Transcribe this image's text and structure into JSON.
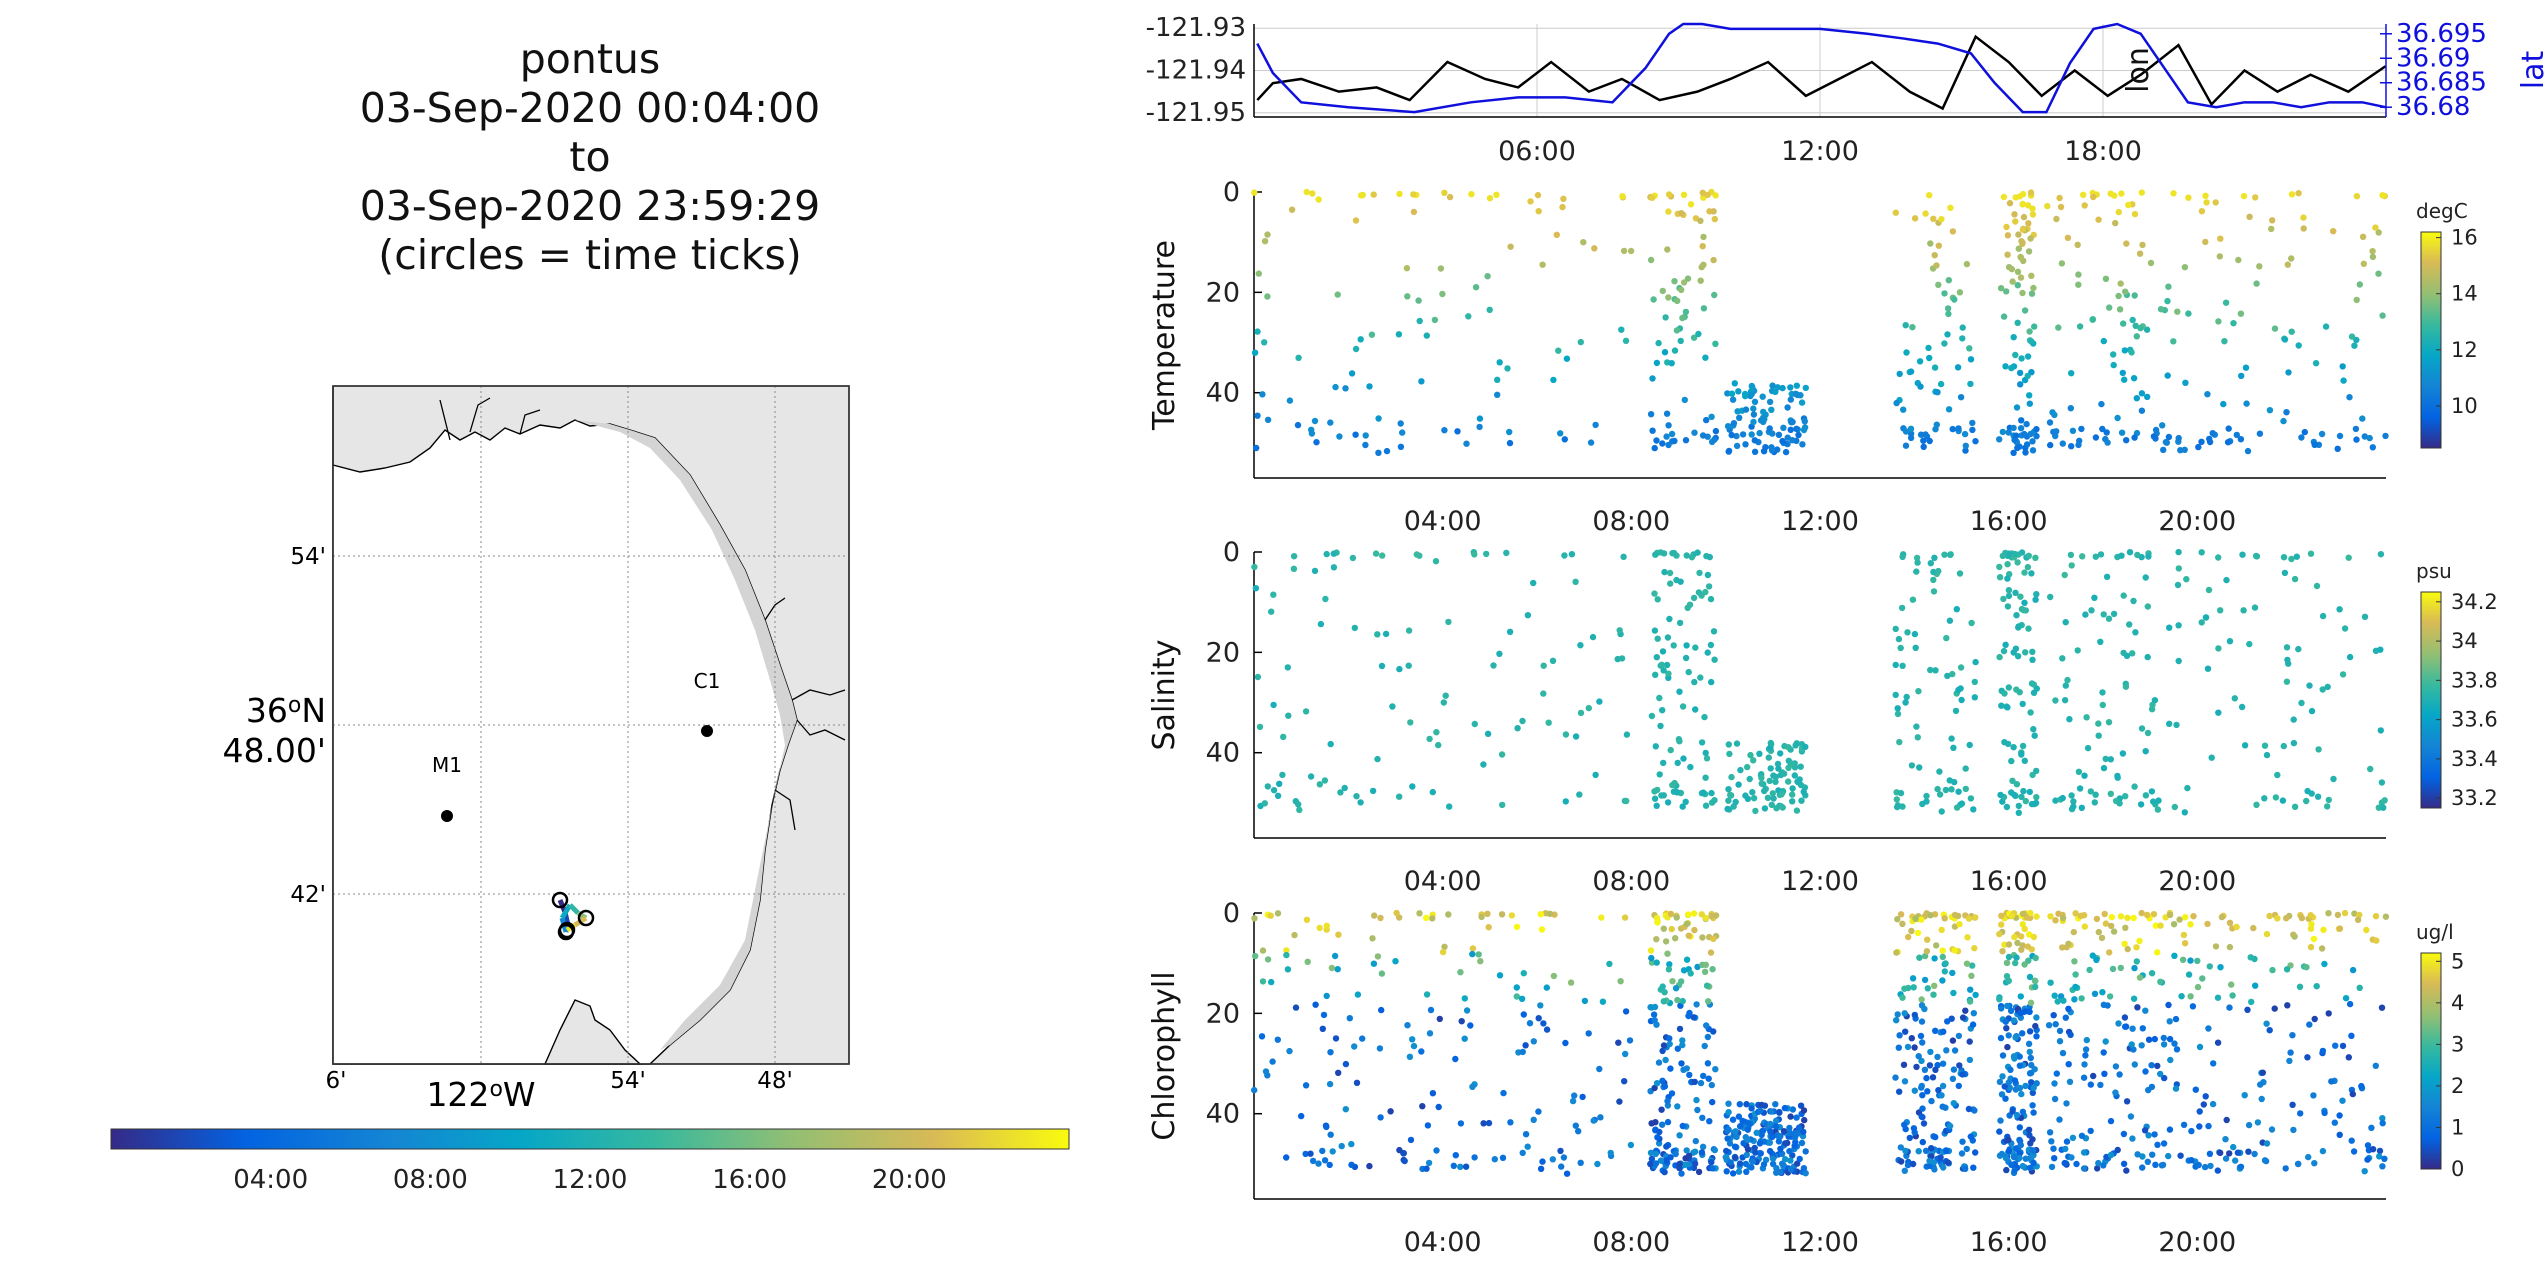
{
  "title": {
    "line1": "pontus",
    "line2": "03-Sep-2020 00:04:00",
    "line3": "to",
    "line4": "03-Sep-2020 23:59:29",
    "line5": "(circles = time ticks)"
  },
  "map": {
    "lat_ticks": [
      "54'",
      "36",
      "48.00'",
      "42'"
    ],
    "lat_deg_prefix": "36",
    "lat_deg_suffix": "N",
    "lat_minutes_label": "48.00'",
    "lon_ticks": [
      "6'",
      "54'",
      "48'"
    ],
    "lon_deg_prefix": "122",
    "lon_deg_suffix": "W",
    "stations": [
      {
        "name": "C1",
        "lat": 36.797,
        "lon": -121.847
      },
      {
        "name": "M1",
        "lat": 36.747,
        "lon": -122.022
      }
    ],
    "colors": {
      "land": "#e6e6e6",
      "water": "#ffffff",
      "coast": "#000000",
      "grid": "#888888"
    }
  },
  "time_colorbar": {
    "ticks": [
      "04:00",
      "08:00",
      "12:00",
      "16:00",
      "20:00"
    ]
  },
  "chart_data": [
    {
      "type": "line",
      "name": "lon-lat-track",
      "ylabel": "lon",
      "ylabel_right": "lat",
      "y_ticks": [
        "-121.93",
        "-121.94",
        "-121.95"
      ],
      "y_ticks_right": [
        "36.695",
        "36.69",
        "36.685",
        "36.68"
      ],
      "x_ticks": [
        "06:00",
        "12:00",
        "18:00"
      ],
      "ylim": [
        -121.951,
        -121.929
      ],
      "ylim_right": [
        36.678,
        36.697
      ],
      "series": [
        {
          "name": "lon",
          "color": "#000000",
          "x": [
            0.07,
            0.4,
            1,
            1.8,
            2.6,
            3.3,
            4.1,
            4.9,
            5.6,
            6.3,
            7.1,
            7.8,
            8.6,
            9.4,
            10.1,
            10.9,
            11.7,
            12.4,
            13.1,
            13.9,
            14.6,
            15.3,
            16,
            16.7,
            17.4,
            18.1,
            18.8,
            19.6,
            20.3,
            21,
            21.7,
            22.4,
            23.2,
            23.99
          ],
          "y": [
            -121.947,
            -121.943,
            -121.942,
            -121.945,
            -121.944,
            -121.947,
            -121.938,
            -121.942,
            -121.944,
            -121.938,
            -121.945,
            -121.942,
            -121.947,
            -121.945,
            -121.942,
            -121.938,
            -121.946,
            -121.942,
            -121.938,
            -121.945,
            -121.949,
            -121.932,
            -121.938,
            -121.946,
            -121.94,
            -121.946,
            -121.941,
            -121.934,
            -121.948,
            -121.94,
            -121.945,
            -121.941,
            -121.945,
            -121.939
          ]
        },
        {
          "name": "lat",
          "color": "#1010dd",
          "x": [
            0.07,
            0.4,
            1,
            2,
            3.4,
            4.6,
            5.6,
            6.6,
            7.6,
            8.3,
            8.8,
            9.1,
            9.5,
            10.1,
            11,
            12,
            13,
            13.8,
            14.5,
            15.2,
            15.7,
            16.3,
            16.8,
            17.3,
            17.8,
            18.3,
            18.8,
            19.3,
            19.8,
            20.4,
            21,
            21.6,
            22.2,
            22.8,
            23.5,
            23.99
          ],
          "y": [
            36.693,
            36.687,
            36.681,
            36.68,
            36.679,
            36.681,
            36.682,
            36.682,
            36.681,
            36.688,
            36.695,
            36.697,
            36.697,
            36.696,
            36.696,
            36.696,
            36.695,
            36.694,
            36.693,
            36.691,
            36.685,
            36.679,
            36.679,
            36.689,
            36.696,
            36.697,
            36.695,
            36.688,
            36.681,
            36.68,
            36.681,
            36.681,
            36.68,
            36.681,
            36.681,
            36.68
          ]
        }
      ]
    },
    {
      "type": "scatter",
      "name": "temperature",
      "ylabel": "Temperature",
      "x_ticks": [
        "04:00",
        "08:00",
        "12:00",
        "16:00",
        "20:00"
      ],
      "y_ticks": [
        "0",
        "20",
        "40"
      ],
      "ylim": [
        0,
        57
      ],
      "colorbar": {
        "unit": "degC",
        "ticks": [
          "16",
          "14",
          "12",
          "10"
        ],
        "range": [
          8.5,
          16.2
        ]
      }
    },
    {
      "type": "scatter",
      "name": "salinity",
      "ylabel": "Salinity",
      "x_ticks": [
        "04:00",
        "08:00",
        "12:00",
        "16:00",
        "20:00"
      ],
      "y_ticks": [
        "0",
        "20",
        "40"
      ],
      "ylim": [
        0,
        57
      ],
      "colorbar": {
        "unit": "psu",
        "ticks": [
          "34.2",
          "34",
          "33.8",
          "33.6",
          "33.4",
          "33.2"
        ],
        "range": [
          33.15,
          34.25
        ]
      }
    },
    {
      "type": "scatter",
      "name": "chlorophyll",
      "ylabel": "Chlorophyll",
      "x_ticks": [
        "04:00",
        "08:00",
        "12:00",
        "16:00",
        "20:00"
      ],
      "y_ticks": [
        "0",
        "20",
        "40"
      ],
      "ylim": [
        0,
        57
      ],
      "colorbar": {
        "unit": "ug/l",
        "ticks": [
          "5",
          "4",
          "3",
          "2",
          "1",
          "0"
        ],
        "range": [
          0,
          5.2
        ]
      }
    }
  ]
}
